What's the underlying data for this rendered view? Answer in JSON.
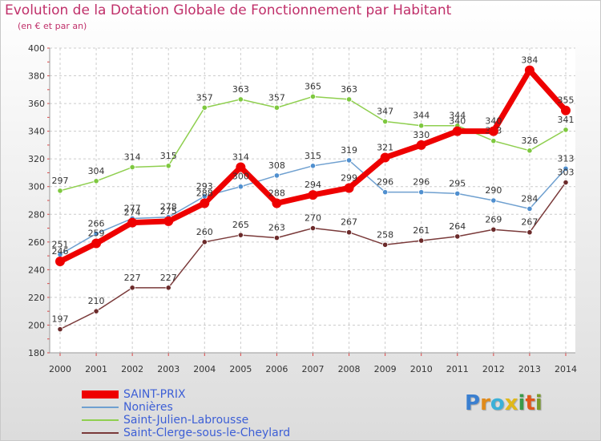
{
  "title": "Evolution de la Dotation Globale de Fonctionnement par Habitant",
  "subtitle": "(en € et par an)",
  "chart_data": {
    "type": "line",
    "title": "Evolution de la Dotation Globale de Fonctionnement par Habitant",
    "subtitle": "(en € et par an)",
    "xlabel": "",
    "ylabel": "",
    "ylim": [
      180,
      400
    ],
    "yticks": [
      180,
      200,
      220,
      240,
      260,
      280,
      300,
      320,
      340,
      360,
      380,
      400
    ],
    "grid": true,
    "categories": [
      "2000",
      "2001",
      "2002",
      "2003",
      "2004",
      "2005",
      "2006",
      "2007",
      "2008",
      "2009",
      "2010",
      "2011",
      "2012",
      "2013",
      "2014"
    ],
    "series": [
      {
        "name": "Saint-Julien-Labrousse",
        "color": "#8fcf4f",
        "marker": "#7ec83f",
        "values": [
          297,
          304,
          314,
          315,
          357,
          363,
          357,
          365,
          363,
          347,
          344,
          344,
          333,
          326,
          341
        ],
        "labels": [
          "297",
          "304",
          "314",
          "315",
          "357",
          "363",
          "357",
          "365",
          "363",
          "347",
          "344",
          "344",
          "333",
          "326",
          "341"
        ]
      },
      {
        "name": "Nonières",
        "color": "#6fa0d0",
        "marker": "#4f8fcf",
        "values": [
          251,
          266,
          277,
          278,
          293,
          300,
          308,
          315,
          319,
          296,
          296,
          295,
          290,
          284,
          313
        ],
        "labels": [
          "251",
          "266",
          "277",
          "278",
          "293",
          "300",
          "308",
          "315",
          "319",
          "296",
          "296",
          "295",
          "290",
          "284",
          "313"
        ]
      },
      {
        "name": "Saint-Clerge-sous-le-Cheylard",
        "color": "#7a3a3a",
        "marker": "#6b2a2a",
        "values": [
          197,
          210,
          227,
          227,
          260,
          265,
          263,
          270,
          267,
          258,
          261,
          264,
          269,
          267,
          303
        ],
        "labels": [
          "197",
          "210",
          "227",
          "227",
          "260",
          "265",
          "263",
          "270",
          "267",
          "258",
          "261",
          "264",
          "269",
          "267",
          "303"
        ]
      },
      {
        "name": "SAINT-PRIX",
        "color": "#ee0000",
        "marker": "#ee0000",
        "values": [
          246,
          259,
          274,
          275,
          288,
          314,
          288,
          294,
          299,
          321,
          330,
          340,
          340,
          384,
          355
        ],
        "labels": [
          "246",
          "259",
          "274",
          "275",
          "288",
          "314",
          "288",
          "294",
          "299",
          "321",
          "330",
          "340",
          "340",
          "384",
          "355"
        ]
      }
    ]
  },
  "legend": [
    {
      "label": "SAINT-PRIX",
      "color": "#ee0000"
    },
    {
      "label": "Nonières",
      "color": "#6fa0d0"
    },
    {
      "label": "Saint-Julien-Labrousse",
      "color": "#8fcf4f"
    },
    {
      "label": "Saint-Clerge-sous-le-Cheylard",
      "color": "#7a3a3a"
    }
  ],
  "logo": {
    "letters": [
      "P",
      "r",
      "o",
      "x",
      "i",
      "t",
      "i"
    ],
    "colors": [
      "#3a7fd0",
      "#e08a1a",
      "#3ab0d8",
      "#e0b81a",
      "#3a9a4a",
      "#e0581a",
      "#7a9a2a"
    ]
  }
}
